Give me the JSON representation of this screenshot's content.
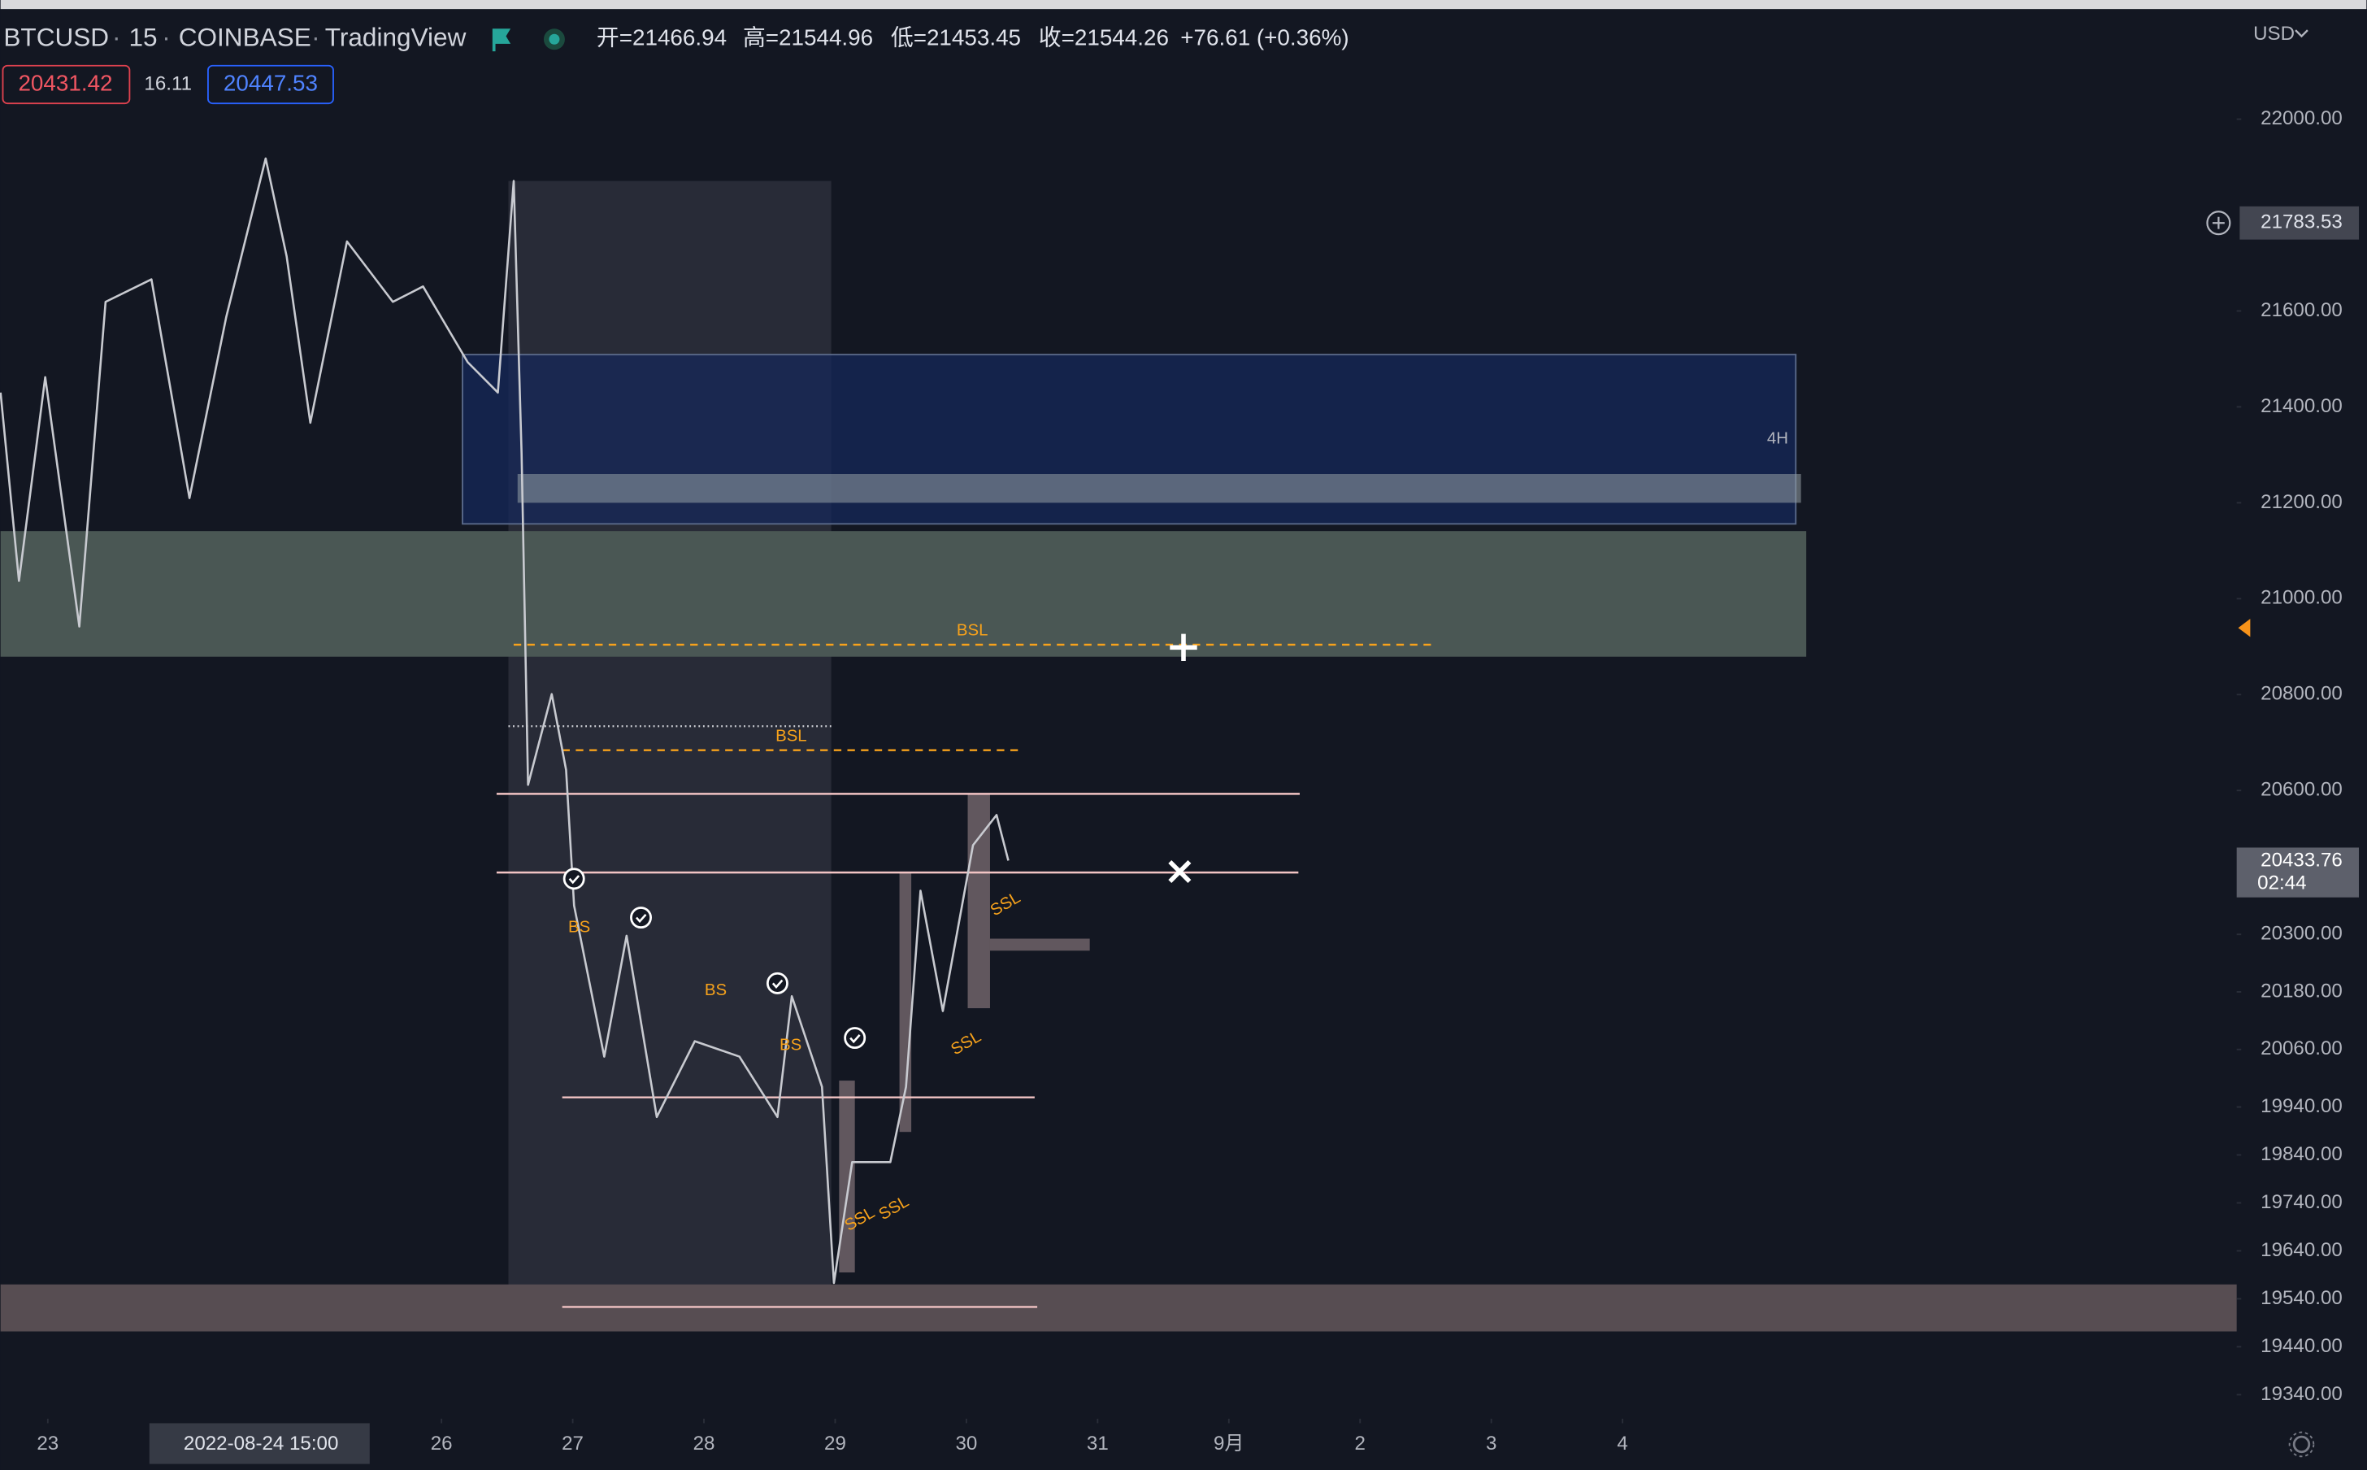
{
  "header": {
    "symbol": "BTCUSD",
    "interval": "15",
    "exchange": "COINBASE",
    "source": "TradingView",
    "ohlc": [
      "开=21466.94",
      "高=21544.96",
      "低=21453.45",
      "收=21544.26"
    ],
    "change": "+76.61 (+0.36%)",
    "bid": "20431.42",
    "spread": "16.11",
    "ask": "20447.53",
    "currency": "USD"
  },
  "chart_data": {
    "type": "line",
    "color": "#c8cad0",
    "x": [
      22.64,
      22.78,
      22.98,
      23.24,
      23.44,
      23.79,
      24.08,
      24.36,
      24.66,
      24.82,
      25.0,
      25.28,
      25.63,
      25.86,
      26.2,
      26.43,
      26.55,
      26.61,
      26.66,
      26.84,
      26.95,
      27.01,
      27.24,
      27.41,
      27.64,
      27.93,
      28.27,
      28.56,
      28.67,
      28.9,
      28.99,
      29.13,
      29.42,
      29.54,
      29.65,
      29.82,
      30.05,
      30.23,
      30.32
    ],
    "values": [
      21430,
      21037,
      21462,
      20942,
      21619,
      21666,
      21210,
      21588,
      21918,
      21714,
      21367,
      21745,
      21619,
      21651,
      21493,
      21430,
      21871,
      21304,
      20612,
      20801,
      20643,
      20360,
      20045,
      20297,
      19919,
      20077,
      20045,
      19919,
      20171,
      19982,
      19573,
      19825,
      19825,
      19982,
      20391,
      20140,
      20486,
      20549,
      20454
    ],
    "xlim": [
      22.64,
      39.68
    ],
    "xticks": [
      23,
      26,
      27,
      28,
      29,
      30,
      31,
      {
        "value": 32,
        "label": "9月"
      },
      {
        "value": 33,
        "label": "2"
      },
      {
        "value": 34,
        "label": "3"
      },
      {
        "value": 35,
        "label": "4"
      }
    ],
    "crosshair_x": {
      "value": 24.625,
      "label": "2022-08-24  15:00"
    },
    "ylim": [
      19290,
      22217
    ],
    "yticks": [
      {
        "value": 22000,
        "label": "22000.00"
      },
      {
        "value": 21600,
        "label": "21600.00"
      },
      {
        "value": 21400,
        "label": "21400.00"
      },
      {
        "value": 21200,
        "label": "21200.00"
      },
      {
        "value": 21000,
        "label": "21000.00"
      },
      {
        "value": 20800,
        "label": "20800.00"
      },
      {
        "value": 20600,
        "label": "20600.00"
      },
      {
        "value": 20300,
        "label": "20300.00"
      },
      {
        "value": 20180,
        "label": "20180.00"
      },
      {
        "value": 20060,
        "label": "20060.00"
      },
      {
        "value": 19940,
        "label": "19940.00"
      },
      {
        "value": 19840,
        "label": "19840.00"
      },
      {
        "value": 19740,
        "label": "19740.00"
      },
      {
        "value": 19640,
        "label": "19640.00"
      },
      {
        "value": 19540,
        "label": "19540.00"
      },
      {
        "value": 19440,
        "label": "19440.00"
      },
      {
        "value": 19340,
        "label": "19340.00"
      }
    ],
    "crosshair_y": 21783.53,
    "last_price": 20433.76,
    "countdown": "02:44",
    "zones": [
      {
        "x": [
          26.51,
          28.97
        ],
        "y": [
          19535,
          21871
        ],
        "color": "rgba(120,120,130,0.22)"
      },
      {
        "x": [
          22.64,
          36.4
        ],
        "y": [
          20879,
          21141
        ],
        "color": "#4a5754"
      },
      {
        "x": [
          26.16,
          36.32
        ],
        "y": [
          21156,
          21509
        ],
        "color": "rgba(22,40,90,0.75)",
        "label": "4H"
      },
      {
        "x": [
          26.58,
          36.36
        ],
        "y": [
          21200,
          21260
        ],
        "color": "rgba(150,160,165,0.55)"
      },
      {
        "x": [
          22.64,
          39.68
        ],
        "y": [
          19472,
          19570
        ],
        "color": "#574d52"
      },
      {
        "x": [
          29.03,
          29.15
        ],
        "y": [
          19595,
          19995
        ],
        "color": "rgba(150,130,135,0.6)"
      },
      {
        "x": [
          29.49,
          29.58
        ],
        "y": [
          19888,
          20429
        ],
        "color": "rgba(150,130,135,0.6)"
      },
      {
        "x": [
          30.01,
          30.18
        ],
        "y": [
          20146,
          20593
        ],
        "color": "rgba(150,130,135,0.6)"
      },
      {
        "x": [
          30.18,
          30.94
        ],
        "y": [
          20266,
          20291
        ],
        "color": "rgba(150,130,135,0.6)"
      }
    ],
    "levels": [
      {
        "value": 20904,
        "x": [
          26.55,
          33.54
        ],
        "style": "dashed",
        "color": "#f7a21b",
        "label": "BSL"
      },
      {
        "value": 20684,
        "x": [
          26.92,
          30.41
        ],
        "style": "dashed",
        "color": "#f7a21b",
        "label": "BSL"
      },
      {
        "value": 20734,
        "x": [
          26.51,
          28.97
        ],
        "style": "dotted",
        "color": "#c8cad0"
      },
      {
        "value": 20593,
        "x": [
          26.42,
          32.54
        ],
        "style": "solid",
        "color": "#f2c4c4"
      },
      {
        "value": 20429,
        "x": [
          26.42,
          32.53
        ],
        "style": "solid",
        "color": "#f2c4c4"
      },
      {
        "value": 19960,
        "x": [
          26.92,
          30.52
        ],
        "style": "solid",
        "color": "#f2c4c4"
      },
      {
        "value": 19523,
        "x": [
          26.92,
          30.54
        ],
        "style": "solid",
        "color": "#f2c4c4"
      }
    ],
    "markers": [
      {
        "text": "BS",
        "x": 27.05,
        "y": 20314,
        "color": "#f7a21b"
      },
      {
        "text": "BS",
        "x": 28.09,
        "y": 20182,
        "color": "#f7a21b"
      },
      {
        "text": "BS",
        "x": 28.66,
        "y": 20068,
        "color": "#f7a21b"
      },
      {
        "text": "SSL",
        "x": 29.19,
        "y": 19705,
        "color": "#f7a21b"
      },
      {
        "text": "SSL",
        "x": 29.45,
        "y": 19728,
        "color": "#f7a21b"
      },
      {
        "text": "SSL",
        "x": 30.0,
        "y": 20072,
        "color": "#f7a21b"
      },
      {
        "text": "SSL",
        "x": 30.3,
        "y": 20362,
        "color": "#f7a21b"
      }
    ],
    "checks": [
      {
        "x": 27.01,
        "y": 20416
      },
      {
        "x": 27.52,
        "y": 20335
      },
      {
        "x": 28.56,
        "y": 20198
      },
      {
        "x": 29.15,
        "y": 20084
      }
    ]
  }
}
